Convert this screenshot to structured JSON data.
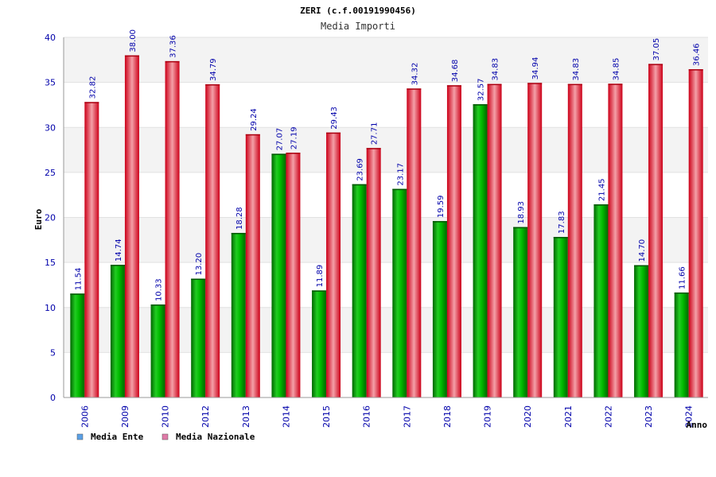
{
  "chart_data": {
    "type": "bar",
    "title": "ZERI (c.f.00191990456)",
    "subtitle": "Media Importi",
    "xlabel": "Anno",
    "ylabel": "Euro",
    "ylim": [
      0,
      40
    ],
    "yticks": [
      "0",
      "5",
      "10",
      "15",
      "20",
      "25",
      "30",
      "35",
      "40"
    ],
    "grid": true,
    "legend_position": "bottom-left",
    "categories": [
      "2006",
      "2009",
      "2010",
      "2012",
      "2013",
      "2014",
      "2015",
      "2016",
      "2017",
      "2018",
      "2019",
      "2020",
      "2021",
      "2022",
      "2023",
      "2024"
    ],
    "series": [
      {
        "name": "Media Ente",
        "color": "#00aa00",
        "legend_color": "#5aa0e6",
        "values": [
          11.54,
          14.74,
          10.33,
          13.2,
          18.28,
          27.07,
          11.89,
          23.69,
          23.17,
          19.59,
          32.57,
          18.93,
          17.83,
          21.45,
          14.7,
          11.66
        ],
        "labels": [
          "11.54",
          "14.74",
          "10.33",
          "13.20",
          "18.28",
          "27.07",
          "11.89",
          "23.69",
          "23.17",
          "19.59",
          "32.57",
          "18.93",
          "17.83",
          "21.45",
          "14.70",
          "11.66"
        ]
      },
      {
        "name": "Media Nazionale",
        "color": "#e8001c",
        "legend_color": "#e07aa8",
        "values": [
          32.82,
          38.0,
          37.36,
          34.79,
          29.24,
          27.19,
          29.43,
          27.71,
          34.32,
          34.68,
          34.83,
          34.94,
          34.83,
          34.85,
          37.05,
          36.46
        ],
        "labels": [
          "32.82",
          "38.00",
          "37.36",
          "34.79",
          "29.24",
          "27.19",
          "29.43",
          "27.71",
          "34.32",
          "34.68",
          "34.83",
          "34.94",
          "34.83",
          "34.85",
          "37.05",
          "36.46"
        ]
      }
    ]
  }
}
